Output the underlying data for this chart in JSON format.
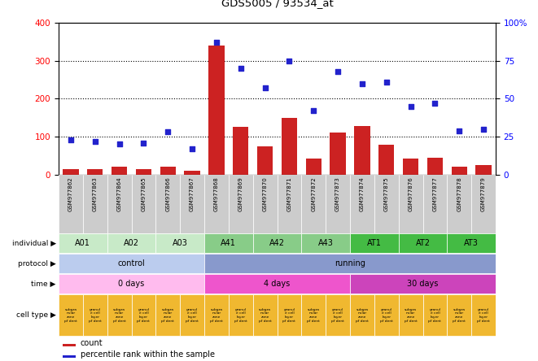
{
  "title": "GDS5005 / 93534_at",
  "samples": [
    "GSM977862",
    "GSM977863",
    "GSM977864",
    "GSM977865",
    "GSM977866",
    "GSM977867",
    "GSM977868",
    "GSM977869",
    "GSM977870",
    "GSM977871",
    "GSM977872",
    "GSM977873",
    "GSM977874",
    "GSM977875",
    "GSM977876",
    "GSM977877",
    "GSM977878",
    "GSM977879"
  ],
  "counts": [
    15,
    15,
    20,
    15,
    20,
    10,
    340,
    125,
    75,
    150,
    42,
    110,
    128,
    78,
    42,
    45,
    22,
    25
  ],
  "percentiles_pct": [
    23,
    22,
    20,
    21,
    28,
    17,
    87,
    70,
    57,
    75,
    42,
    68,
    60,
    61,
    45,
    47,
    29,
    30
  ],
  "individuals": [
    {
      "label": "A01",
      "span": [
        0,
        2
      ],
      "color": "#c8eac8"
    },
    {
      "label": "A02",
      "span": [
        2,
        4
      ],
      "color": "#c8eac8"
    },
    {
      "label": "A03",
      "span": [
        4,
        6
      ],
      "color": "#c8eac8"
    },
    {
      "label": "A41",
      "span": [
        6,
        8
      ],
      "color": "#88cc88"
    },
    {
      "label": "A42",
      "span": [
        8,
        10
      ],
      "color": "#88cc88"
    },
    {
      "label": "A43",
      "span": [
        10,
        12
      ],
      "color": "#88cc88"
    },
    {
      "label": "AT1",
      "span": [
        12,
        14
      ],
      "color": "#44bb44"
    },
    {
      "label": "AT2",
      "span": [
        14,
        16
      ],
      "color": "#44bb44"
    },
    {
      "label": "AT3",
      "span": [
        16,
        18
      ],
      "color": "#44bb44"
    }
  ],
  "protocols": [
    {
      "label": "control",
      "span": [
        0,
        6
      ],
      "color": "#bbccee"
    },
    {
      "label": "running",
      "span": [
        6,
        18
      ],
      "color": "#8899cc"
    }
  ],
  "times": [
    {
      "label": "0 days",
      "span": [
        0,
        6
      ],
      "color": "#ffbbee"
    },
    {
      "label": "4 days",
      "span": [
        6,
        12
      ],
      "color": "#ee55cc"
    },
    {
      "label": "30 days",
      "span": [
        12,
        18
      ],
      "color": "#cc44bb"
    }
  ],
  "cell_type_color": "#f0b830",
  "bar_color": "#cc2222",
  "scatter_color": "#2222cc",
  "ylim_left": [
    0,
    400
  ],
  "ylim_right": [
    0,
    100
  ],
  "yticks_left": [
    0,
    100,
    200,
    300,
    400
  ],
  "yticks_right": [
    0,
    25,
    50,
    75,
    100
  ],
  "ytick_labels_right": [
    "0",
    "25",
    "50",
    "75",
    "100%"
  ],
  "sample_bg": "#cccccc"
}
